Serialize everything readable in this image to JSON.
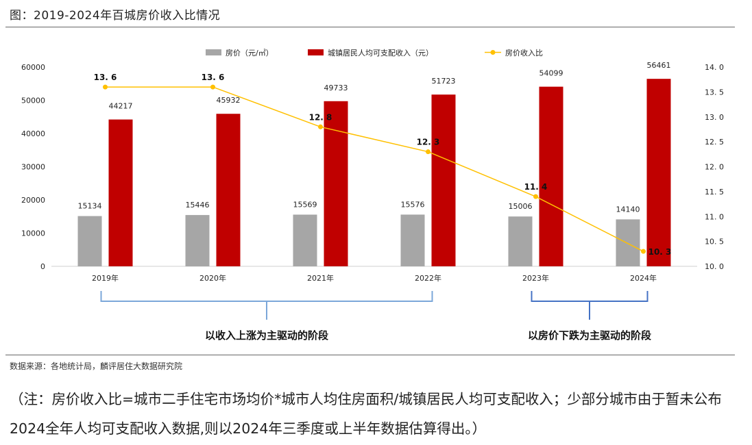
{
  "figure": {
    "title": "图：2019-2024年百城房价收入比情况",
    "source": "数据来源：各地统计局，麟评居住大数据研究院",
    "note": "（注：房价收入比=城市二手住宅市场均价*城市人均住房面积/城镇居民人均可支配收入；少部分城市由于暂未公布2024全年人均可支配收入数据,则以2024年三季度或上半年数据估算得出。）"
  },
  "chart_data": {
    "type": "bar",
    "categories": [
      "2019年",
      "2020年",
      "2021年",
      "2022年",
      "2023年",
      "2024年"
    ],
    "series": [
      {
        "name": "房价（元/㎡）",
        "type": "bar",
        "axis": "left",
        "color": "#a6a6a6",
        "values": [
          15134,
          15446,
          15569,
          15576,
          15006,
          14140
        ]
      },
      {
        "name": "城镇居民人均可支配收入（元）",
        "type": "bar",
        "axis": "left",
        "color": "#c00000",
        "values": [
          44217,
          45932,
          49733,
          51723,
          54099,
          56461
        ]
      },
      {
        "name": "房价收入比",
        "type": "line",
        "axis": "right",
        "color": "#ffc000",
        "values": [
          13.6,
          13.6,
          12.8,
          12.3,
          11.4,
          10.3
        ]
      }
    ],
    "ratio_labels": [
      "13. 6",
      "13. 6",
      "12. 8",
      "12. 3",
      "11. 4",
      "10. 3"
    ],
    "y_left": {
      "min": 0,
      "max": 60000,
      "ticks": [
        "0",
        "10000",
        "20000",
        "30000",
        "40000",
        "50000",
        "60000"
      ]
    },
    "y_right": {
      "min": 10.0,
      "max": 14.0,
      "ticks": [
        "10. 0",
        "10. 5",
        "11. 0",
        "11. 5",
        "12. 0",
        "12. 5",
        "13. 0",
        "13. 5",
        "14. 0"
      ]
    },
    "legend_position": "top",
    "grid": false,
    "phases": [
      {
        "label": "以收入上涨为主驱动的阶段",
        "from": "2019年",
        "to": "2022年",
        "color": "#7ba7d9"
      },
      {
        "label": "以房价下跌为主驱动的阶段",
        "from": "2023年",
        "to": "2024年",
        "color": "#4472c4"
      }
    ]
  }
}
